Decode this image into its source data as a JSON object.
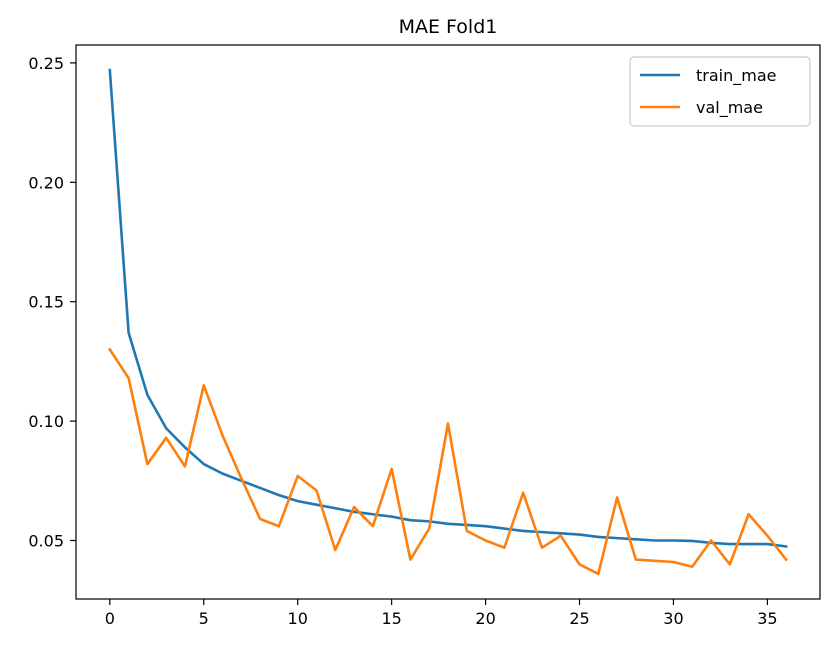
{
  "chart_data": {
    "type": "line",
    "title": "MAE Fold1",
    "xlabel": "",
    "ylabel": "",
    "xlim": [
      -1.8,
      37.8
    ],
    "ylim": [
      0.0255,
      0.2575
    ],
    "xticks": [
      0,
      5,
      10,
      15,
      20,
      25,
      30,
      35
    ],
    "yticks": [
      0.05,
      0.1,
      0.15,
      0.2,
      0.25
    ],
    "ytick_labels": [
      "0.05",
      "0.10",
      "0.15",
      "0.20",
      "0.25"
    ],
    "grid": false,
    "legend_position": "top-right",
    "x": [
      0,
      1,
      2,
      3,
      4,
      5,
      6,
      7,
      8,
      9,
      10,
      11,
      12,
      13,
      14,
      15,
      16,
      17,
      18,
      19,
      20,
      21,
      22,
      23,
      24,
      25,
      26,
      27,
      28,
      29,
      30,
      31,
      32,
      33,
      34,
      35,
      36
    ],
    "series": [
      {
        "name": "train_mae",
        "color": "#1f77b4",
        "values": [
          0.247,
          0.137,
          0.111,
          0.097,
          0.089,
          0.082,
          0.078,
          0.075,
          0.072,
          0.069,
          0.0665,
          0.065,
          0.0635,
          0.062,
          0.061,
          0.06,
          0.0585,
          0.058,
          0.057,
          0.0565,
          0.056,
          0.055,
          0.054,
          0.0535,
          0.053,
          0.0525,
          0.0515,
          0.051,
          0.0505,
          0.05,
          0.05,
          0.0498,
          0.049,
          0.0485,
          0.0485,
          0.0485,
          0.0475
        ]
      },
      {
        "name": "val_mae",
        "color": "#ff7f0e",
        "values": [
          0.13,
          0.118,
          0.082,
          0.093,
          0.081,
          0.115,
          0.094,
          0.076,
          0.059,
          0.056,
          0.077,
          0.071,
          0.046,
          0.064,
          0.056,
          0.08,
          0.042,
          0.055,
          0.099,
          0.054,
          0.05,
          0.047,
          0.07,
          0.047,
          0.052,
          0.04,
          0.036,
          0.068,
          0.042,
          0.0415,
          0.041,
          0.039,
          0.05,
          0.04,
          0.061,
          0.052,
          0.042
        ]
      }
    ]
  }
}
